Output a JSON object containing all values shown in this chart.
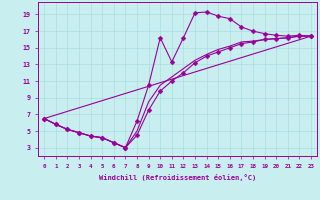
{
  "xlabel": "Windchill (Refroidissement éolien,°C)",
  "background_color": "#c8eef0",
  "grid_color": "#aadddd",
  "line_color": "#990099",
  "xlim": [
    -0.5,
    23.5
  ],
  "ylim": [
    2.0,
    20.5
  ],
  "xticks": [
    0,
    1,
    2,
    3,
    4,
    5,
    6,
    7,
    8,
    9,
    10,
    11,
    12,
    13,
    14,
    15,
    16,
    17,
    18,
    19,
    20,
    21,
    22,
    23
  ],
  "yticks": [
    3,
    5,
    7,
    9,
    11,
    13,
    15,
    17,
    19
  ],
  "curve1_x": [
    0,
    1,
    2,
    3,
    4,
    5,
    6,
    7,
    8,
    9,
    10,
    11,
    12,
    13,
    14,
    15,
    16,
    17,
    18,
    19,
    20,
    21,
    22,
    23
  ],
  "curve1_y": [
    6.5,
    5.8,
    5.2,
    4.8,
    4.4,
    4.2,
    3.6,
    3.0,
    6.2,
    10.5,
    16.2,
    13.3,
    16.2,
    19.2,
    19.3,
    18.8,
    18.5,
    17.5,
    17.0,
    16.7,
    16.5,
    16.4,
    16.5,
    16.4
  ],
  "curve2_x": [
    0,
    1,
    2,
    3,
    4,
    5,
    6,
    7,
    8,
    9,
    10,
    11,
    12,
    13,
    14,
    15,
    16,
    17,
    18,
    19,
    20,
    21,
    22,
    23
  ],
  "curve2_y": [
    6.5,
    5.8,
    5.2,
    4.8,
    4.4,
    4.2,
    3.6,
    3.0,
    4.5,
    7.5,
    9.8,
    11.0,
    12.0,
    13.2,
    14.0,
    14.5,
    15.0,
    15.5,
    15.7,
    16.0,
    16.1,
    16.2,
    16.4,
    16.4
  ],
  "curve3_x": [
    0,
    23
  ],
  "curve3_y": [
    6.5,
    16.4
  ],
  "curve4_x": [
    0,
    1,
    2,
    3,
    4,
    5,
    6,
    7,
    8,
    9,
    10,
    11,
    12,
    13,
    14,
    15,
    16,
    17,
    18,
    19,
    20,
    21,
    22,
    23
  ],
  "curve4_y": [
    6.5,
    5.8,
    5.2,
    4.8,
    4.4,
    4.2,
    3.6,
    3.0,
    5.0,
    8.5,
    10.5,
    11.5,
    12.5,
    13.5,
    14.2,
    14.8,
    15.2,
    15.7,
    15.8,
    16.0,
    16.1,
    16.2,
    16.4,
    16.4
  ]
}
